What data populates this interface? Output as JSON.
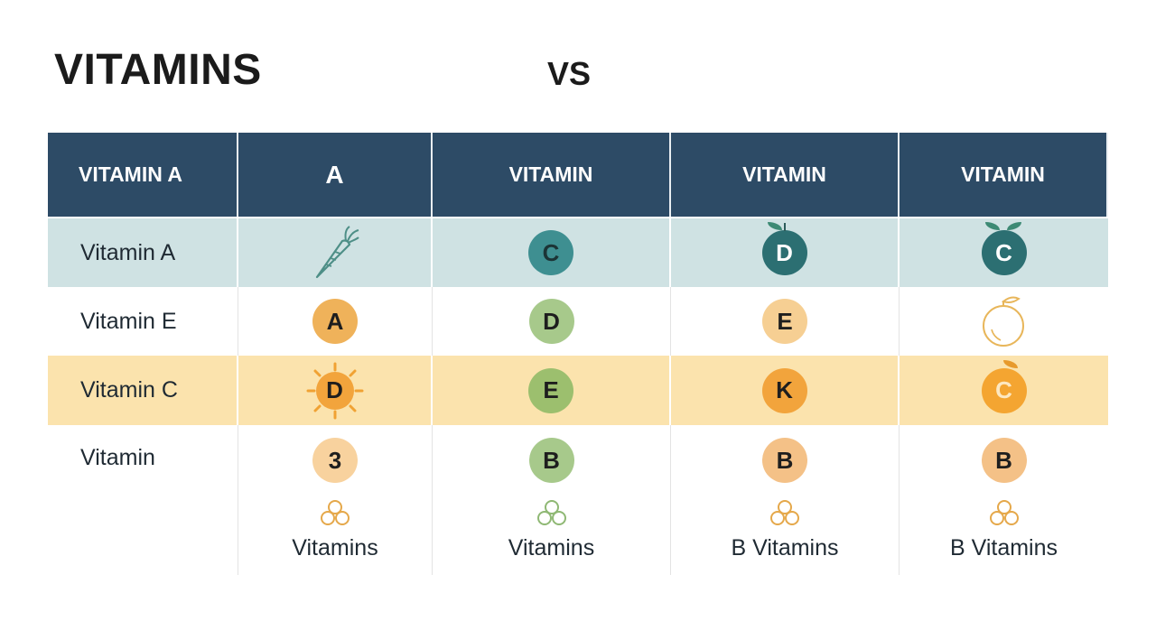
{
  "title": "VITAMINS",
  "vs": "VS",
  "headers": [
    "VITAMIN A",
    "A",
    "VITAMIN",
    "VITAMIN",
    "VITAMIN"
  ],
  "rows": [
    {
      "label": "Vitamin A",
      "cells": [
        {
          "type": "icon",
          "icon": "carrot-icon"
        },
        {
          "type": "badge",
          "text": "C",
          "color": "#3e8f91"
        },
        {
          "type": "badge",
          "text": "D",
          "color": "#2c6f72",
          "icon": "leaf-icon"
        },
        {
          "type": "badge",
          "text": "C",
          "color": "#2c6f72",
          "icon": "leaf-icon"
        }
      ]
    },
    {
      "label": "Vitamin E",
      "cells": [
        {
          "type": "badge",
          "text": "A",
          "color": "#efb25a"
        },
        {
          "type": "badge",
          "text": "D",
          "color": "#a7c98b"
        },
        {
          "type": "badge",
          "text": "E",
          "color": "#f6cf93"
        },
        {
          "type": "icon",
          "icon": "orange-fruit-icon"
        }
      ]
    },
    {
      "label": "Vitamin C",
      "cells": [
        {
          "type": "badge",
          "text": "D",
          "color": "#f2a43c",
          "icon": "sun-splash-icon"
        },
        {
          "type": "badge",
          "text": "E",
          "color": "#a7c98b"
        },
        {
          "type": "badge",
          "text": "K",
          "color": "#f2a43c"
        },
        {
          "type": "badge",
          "text": "C",
          "color": "#f4a531",
          "icon": "leaf-icon"
        }
      ]
    },
    {
      "label": "Vitamin",
      "cells": [
        {
          "type": "badge",
          "text": "3",
          "color": "#f8d29e",
          "caption": "Vitamins",
          "icon": "capsules-cluster-icon"
        },
        {
          "type": "badge",
          "text": "B",
          "color": "#a7c98b",
          "caption": "Vitamins",
          "icon": "capsules-cluster-icon"
        },
        {
          "type": "badge",
          "text": "B",
          "color": "#f4c187",
          "caption": "B Vitamins",
          "icon": "capsules-cluster-icon"
        },
        {
          "type": "badge",
          "text": "B",
          "color": "#f4c187",
          "caption": "B Vitamins",
          "icon": "capsules-cluster-icon"
        }
      ]
    }
  ]
}
